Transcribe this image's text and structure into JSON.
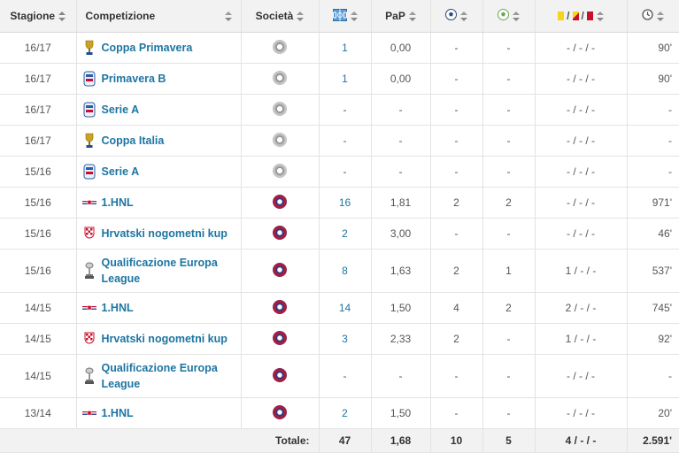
{
  "header": {
    "season": "Stagione",
    "competition": "Competizione",
    "club": "Società",
    "appearances_icon": "appearances-icon",
    "ppg": "PaP",
    "goals_icon": "ball-icon",
    "assists_icon": "assist-icon",
    "cards_icon": "cards-icon",
    "minutes_icon": "clock-icon"
  },
  "colors": {
    "link": "#1d75a3",
    "header_bg": "#f2f2f2",
    "yellow": "#f6d41a",
    "red": "#c8102e"
  },
  "rows": [
    {
      "season": "16/17",
      "competition": "Coppa Primavera",
      "club": "club-a",
      "apps": "1",
      "ppg": "0,00",
      "goals": "-",
      "assists": "-",
      "cards": "- / - / -",
      "minutes": "90'",
      "icon": "trophy-icon"
    },
    {
      "season": "16/17",
      "competition": "Primavera B",
      "club": "club-a",
      "apps": "1",
      "ppg": "0,00",
      "goals": "-",
      "assists": "-",
      "cards": "- / - / -",
      "minutes": "90'",
      "icon": "league-icon"
    },
    {
      "season": "16/17",
      "competition": "Serie A",
      "club": "club-a",
      "apps": "-",
      "ppg": "-",
      "goals": "-",
      "assists": "-",
      "cards": "- / - / -",
      "minutes": "-",
      "icon": "league-icon"
    },
    {
      "season": "16/17",
      "competition": "Coppa Italia",
      "club": "club-a",
      "apps": "-",
      "ppg": "-",
      "goals": "-",
      "assists": "-",
      "cards": "- / - / -",
      "minutes": "-",
      "icon": "trophy-icon"
    },
    {
      "season": "15/16",
      "competition": "Serie A",
      "club": "club-a",
      "apps": "-",
      "ppg": "-",
      "goals": "-",
      "assists": "-",
      "cards": "- / - / -",
      "minutes": "-",
      "icon": "league-icon"
    },
    {
      "season": "15/16",
      "competition": "1.HNL",
      "club": "club-b",
      "apps": "16",
      "ppg": "1,81",
      "goals": "2",
      "assists": "2",
      "cards": "- / - / -",
      "minutes": "971'",
      "icon": "flag-icon"
    },
    {
      "season": "15/16",
      "competition": "Hrvatski nogometni kup",
      "club": "club-b",
      "apps": "2",
      "ppg": "3,00",
      "goals": "-",
      "assists": "-",
      "cards": "- / - / -",
      "minutes": "46'",
      "icon": "crest-icon"
    },
    {
      "season": "15/16",
      "competition": "Qualificazione Europa League",
      "club": "club-b",
      "apps": "8",
      "ppg": "1,63",
      "goals": "2",
      "assists": "1",
      "cards": "1 / - / -",
      "minutes": "537'",
      "icon": "cup-icon",
      "tall": true
    },
    {
      "season": "14/15",
      "competition": "1.HNL",
      "club": "club-b",
      "apps": "14",
      "ppg": "1,50",
      "goals": "4",
      "assists": "2",
      "cards": "2 / - / -",
      "minutes": "745'",
      "icon": "flag-icon"
    },
    {
      "season": "14/15",
      "competition": "Hrvatski nogometni kup",
      "club": "club-b",
      "apps": "3",
      "ppg": "2,33",
      "goals": "2",
      "assists": "-",
      "cards": "1 / - / -",
      "minutes": "92'",
      "icon": "crest-icon"
    },
    {
      "season": "14/15",
      "competition": "Qualificazione Europa League",
      "club": "club-b",
      "apps": "-",
      "ppg": "-",
      "goals": "-",
      "assists": "-",
      "cards": "- / - / -",
      "minutes": "-",
      "icon": "cup-icon",
      "tall": true
    },
    {
      "season": "13/14",
      "competition": "1.HNL",
      "club": "club-b",
      "apps": "2",
      "ppg": "1,50",
      "goals": "-",
      "assists": "-",
      "cards": "- / - / -",
      "minutes": "20'",
      "icon": "flag-icon"
    }
  ],
  "totals": {
    "label": "Totale:",
    "apps": "47",
    "ppg": "1,68",
    "goals": "10",
    "assists": "5",
    "cards": "4 / - / -",
    "minutes": "2.591'"
  }
}
